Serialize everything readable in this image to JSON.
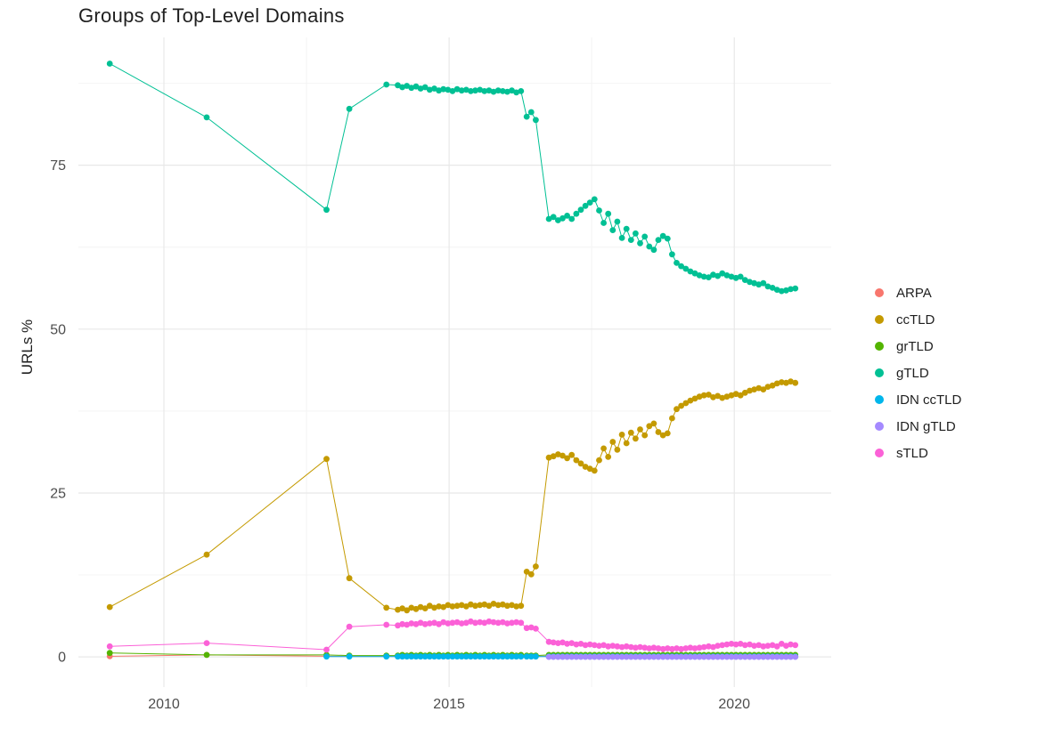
{
  "chart_data": {
    "type": "line",
    "title": "Groups of Top-Level Domains",
    "xlabel": "",
    "ylabel": "URLs %",
    "xlim": [
      2008.5,
      2021.7
    ],
    "ylim": [
      -4.6,
      94.5
    ],
    "x_ticks": [
      2010,
      2015,
      2020
    ],
    "y_ticks": [
      0,
      25,
      50,
      75
    ],
    "x_minor_ticks": [
      2012.5,
      2017.5
    ],
    "y_minor_ticks": [
      12.5,
      37.5,
      62.5,
      87.5
    ],
    "grid": true,
    "legend_position": "right",
    "background": "#FFFFFF",
    "grid_major_color": "#E8E8E8",
    "grid_minor_color": "#F4F4F4",
    "tick_label_color": "#4D4D4D",
    "x": [
      2009.05,
      2010.75,
      2012.85,
      2013.25,
      2013.9,
      2014.1,
      2014.18,
      2014.26,
      2014.34,
      2014.42,
      2014.5,
      2014.58,
      2014.66,
      2014.74,
      2014.82,
      2014.9,
      2014.98,
      2015.06,
      2015.14,
      2015.22,
      2015.3,
      2015.38,
      2015.46,
      2015.54,
      2015.62,
      2015.7,
      2015.78,
      2015.86,
      2015.94,
      2016.02,
      2016.1,
      2016.18,
      2016.26,
      2016.36,
      2016.44,
      2016.52,
      2016.75,
      2016.83,
      2016.91,
      2016.99,
      2017.07,
      2017.15,
      2017.23,
      2017.31,
      2017.39,
      2017.47,
      2017.55,
      2017.63,
      2017.71,
      2017.79,
      2017.87,
      2017.95,
      2018.03,
      2018.11,
      2018.19,
      2018.27,
      2018.35,
      2018.43,
      2018.51,
      2018.59,
      2018.67,
      2018.75,
      2018.83,
      2018.91,
      2018.99,
      2019.07,
      2019.15,
      2019.23,
      2019.31,
      2019.39,
      2019.47,
      2019.55,
      2019.63,
      2019.71,
      2019.79,
      2019.87,
      2019.95,
      2020.03,
      2020.11,
      2020.19,
      2020.27,
      2020.35,
      2020.43,
      2020.51,
      2020.59,
      2020.67,
      2020.75,
      2020.83,
      2020.91,
      2020.99,
      2021.07
    ],
    "series": [
      {
        "name": "ARPA",
        "color": "#F8766D",
        "values": [
          0.1,
          0.3,
          0.1,
          0.1,
          0.1,
          0.1,
          0.1,
          0.1,
          0.1,
          0.1,
          0.1,
          0.1,
          0.1,
          0.1,
          0.1,
          0.1,
          0.1,
          0.1,
          0.1,
          0.1,
          0.1,
          0.1,
          0.1,
          0.1,
          0.1,
          0.1,
          0.1,
          0.1,
          0.1,
          0.1,
          0.1,
          0.1,
          0.1,
          0.1,
          0.1,
          0.1,
          0.1,
          0.1,
          0.1,
          0.1,
          0.1,
          0.1,
          0.1,
          0.1,
          0.1,
          0.1,
          0.1,
          0.1,
          0.1,
          0.1,
          0.1,
          0.1,
          0.1,
          0.1,
          0.1,
          0.1,
          0.1,
          0.1,
          0.1,
          0.1,
          0.1,
          0.1,
          0.1,
          0.1,
          0.1,
          0.1,
          0.1,
          0.1,
          0.1,
          0.1,
          0.1,
          0.1,
          0.1,
          0.1,
          0.1,
          0.1,
          0.1,
          0.1,
          0.1,
          0.1,
          0.1,
          0.1,
          0.1,
          0.1,
          0.1,
          0.1,
          0.1,
          0.1,
          0.1,
          0.1,
          0.1
        ]
      },
      {
        "name": "ccTLD",
        "color": "#C49A00",
        "values": [
          7.6,
          15.6,
          30.2,
          12.0,
          7.5,
          7.2,
          7.4,
          7.1,
          7.5,
          7.3,
          7.6,
          7.4,
          7.8,
          7.5,
          7.7,
          7.6,
          7.9,
          7.7,
          7.8,
          7.9,
          7.7,
          8.0,
          7.8,
          7.9,
          8.0,
          7.8,
          8.1,
          7.9,
          8.0,
          7.8,
          7.9,
          7.7,
          7.8,
          13.0,
          12.6,
          13.8,
          30.4,
          30.6,
          30.9,
          30.7,
          30.3,
          30.8,
          30.0,
          29.5,
          29.0,
          28.7,
          28.4,
          30.0,
          31.8,
          30.5,
          32.8,
          31.6,
          33.9,
          32.6,
          34.2,
          33.3,
          34.7,
          33.8,
          35.2,
          35.6,
          34.3,
          33.8,
          34.1,
          36.4,
          37.8,
          38.3,
          38.7,
          39.1,
          39.4,
          39.7,
          39.9,
          40.0,
          39.6,
          39.8,
          39.5,
          39.7,
          39.9,
          40.1,
          39.9,
          40.3,
          40.6,
          40.8,
          41.0,
          40.8,
          41.2,
          41.4,
          41.7,
          41.9,
          41.8,
          42.0,
          41.8
        ]
      },
      {
        "name": "grTLD",
        "color": "#53B400",
        "values": [
          0.6,
          0.3,
          0.3,
          0.2,
          0.2,
          0.2,
          0.3,
          0.2,
          0.3,
          0.2,
          0.3,
          0.2,
          0.3,
          0.2,
          0.3,
          0.2,
          0.3,
          0.2,
          0.3,
          0.2,
          0.3,
          0.2,
          0.3,
          0.2,
          0.3,
          0.2,
          0.3,
          0.2,
          0.3,
          0.2,
          0.3,
          0.2,
          0.3,
          0.2,
          0.2,
          0.2,
          0.3,
          0.3,
          0.3,
          0.3,
          0.3,
          0.3,
          0.3,
          0.3,
          0.3,
          0.3,
          0.3,
          0.3,
          0.3,
          0.3,
          0.3,
          0.3,
          0.3,
          0.3,
          0.3,
          0.3,
          0.3,
          0.3,
          0.3,
          0.3,
          0.3,
          0.3,
          0.3,
          0.3,
          0.3,
          0.3,
          0.3,
          0.3,
          0.3,
          0.3,
          0.3,
          0.3,
          0.3,
          0.3,
          0.3,
          0.3,
          0.3,
          0.3,
          0.3,
          0.3,
          0.3,
          0.3,
          0.3,
          0.3,
          0.3,
          0.3,
          0.3,
          0.3,
          0.3,
          0.3,
          0.3
        ]
      },
      {
        "name": "gTLD",
        "color": "#00C094",
        "values": [
          90.5,
          82.3,
          68.2,
          83.6,
          87.3,
          87.2,
          86.9,
          87.1,
          86.8,
          87.0,
          86.7,
          86.9,
          86.5,
          86.7,
          86.4,
          86.6,
          86.5,
          86.3,
          86.6,
          86.4,
          86.5,
          86.3,
          86.4,
          86.5,
          86.3,
          86.4,
          86.2,
          86.4,
          86.3,
          86.2,
          86.4,
          86.1,
          86.3,
          82.4,
          83.1,
          81.9,
          66.8,
          67.1,
          66.6,
          66.9,
          67.3,
          66.8,
          67.6,
          68.2,
          68.8,
          69.3,
          69.8,
          68.1,
          66.2,
          67.6,
          65.1,
          66.4,
          63.9,
          65.3,
          63.6,
          64.6,
          63.1,
          64.1,
          62.6,
          62.1,
          63.6,
          64.2,
          63.8,
          61.4,
          60.1,
          59.6,
          59.2,
          58.8,
          58.5,
          58.2,
          58.0,
          57.9,
          58.3,
          58.1,
          58.5,
          58.2,
          58.0,
          57.8,
          58.0,
          57.5,
          57.2,
          57.0,
          56.8,
          57.0,
          56.5,
          56.3,
          56.0,
          55.8,
          55.9,
          56.1,
          56.2
        ]
      },
      {
        "name": "IDN ccTLD",
        "color": "#00B6EB",
        "values": [
          null,
          null,
          0.05,
          0.05,
          0.05,
          0.05,
          0.05,
          0.05,
          0.05,
          0.05,
          0.05,
          0.05,
          0.05,
          0.05,
          0.05,
          0.05,
          0.05,
          0.05,
          0.05,
          0.05,
          0.05,
          0.05,
          0.05,
          0.05,
          0.05,
          0.05,
          0.05,
          0.05,
          0.05,
          0.05,
          0.05,
          0.05,
          0.05,
          0.05,
          0.05,
          0.05,
          0.05,
          0.05,
          0.05,
          0.05,
          0.05,
          0.05,
          0.05,
          0.05,
          0.05,
          0.05,
          0.05,
          0.05,
          0.05,
          0.05,
          0.05,
          0.05,
          0.05,
          0.05,
          0.05,
          0.05,
          0.05,
          0.05,
          0.05,
          0.05,
          0.05,
          0.05,
          0.05,
          0.05,
          0.05,
          0.05,
          0.05,
          0.05,
          0.05,
          0.05,
          0.05,
          0.05,
          0.05,
          0.05,
          0.05,
          0.05,
          0.05,
          0.05,
          0.05,
          0.05,
          0.05,
          0.05,
          0.05,
          0.05,
          0.05,
          0.05,
          0.05,
          0.05,
          0.05,
          0.05,
          0.05
        ]
      },
      {
        "name": "IDN gTLD",
        "color": "#A58AFF",
        "values": [
          null,
          null,
          null,
          null,
          null,
          null,
          null,
          null,
          null,
          null,
          null,
          null,
          null,
          null,
          null,
          null,
          null,
          null,
          null,
          null,
          null,
          null,
          null,
          null,
          null,
          null,
          null,
          null,
          null,
          null,
          null,
          null,
          null,
          null,
          null,
          null,
          0.0,
          0.0,
          0.0,
          0.0,
          0.0,
          0.0,
          0.0,
          0.0,
          0.0,
          0.0,
          0.0,
          0.0,
          0.0,
          0.0,
          0.0,
          0.0,
          0.0,
          0.0,
          0.0,
          0.0,
          0.0,
          0.0,
          0.0,
          0.0,
          0.0,
          0.0,
          0.0,
          0.0,
          0.0,
          0.0,
          0.0,
          0.0,
          0.0,
          0.0,
          0.0,
          0.0,
          0.0,
          0.0,
          0.0,
          0.0,
          0.0,
          0.0,
          0.0,
          0.0,
          0.0,
          0.0,
          0.0,
          0.0,
          0.0,
          0.0,
          0.0,
          0.0,
          0.0,
          0.0,
          0.0
        ]
      },
      {
        "name": "sTLD",
        "color": "#FB61D7",
        "values": [
          1.6,
          2.1,
          1.1,
          4.6,
          4.9,
          4.8,
          5.0,
          4.9,
          5.1,
          5.0,
          5.2,
          5.0,
          5.1,
          5.2,
          5.0,
          5.3,
          5.1,
          5.2,
          5.3,
          5.1,
          5.2,
          5.4,
          5.2,
          5.3,
          5.2,
          5.4,
          5.3,
          5.2,
          5.3,
          5.1,
          5.2,
          5.3,
          5.2,
          4.4,
          4.5,
          4.3,
          2.3,
          2.2,
          2.1,
          2.2,
          2.0,
          2.1,
          1.9,
          2.0,
          1.8,
          1.9,
          1.8,
          1.7,
          1.8,
          1.6,
          1.7,
          1.6,
          1.5,
          1.6,
          1.5,
          1.4,
          1.5,
          1.4,
          1.3,
          1.4,
          1.3,
          1.2,
          1.3,
          1.2,
          1.3,
          1.2,
          1.3,
          1.4,
          1.3,
          1.4,
          1.5,
          1.6,
          1.5,
          1.7,
          1.8,
          1.9,
          2.0,
          1.9,
          2.0,
          1.8,
          1.9,
          1.7,
          1.8,
          1.6,
          1.7,
          1.8,
          1.6,
          2.0,
          1.7,
          1.9,
          1.8
        ]
      }
    ]
  }
}
